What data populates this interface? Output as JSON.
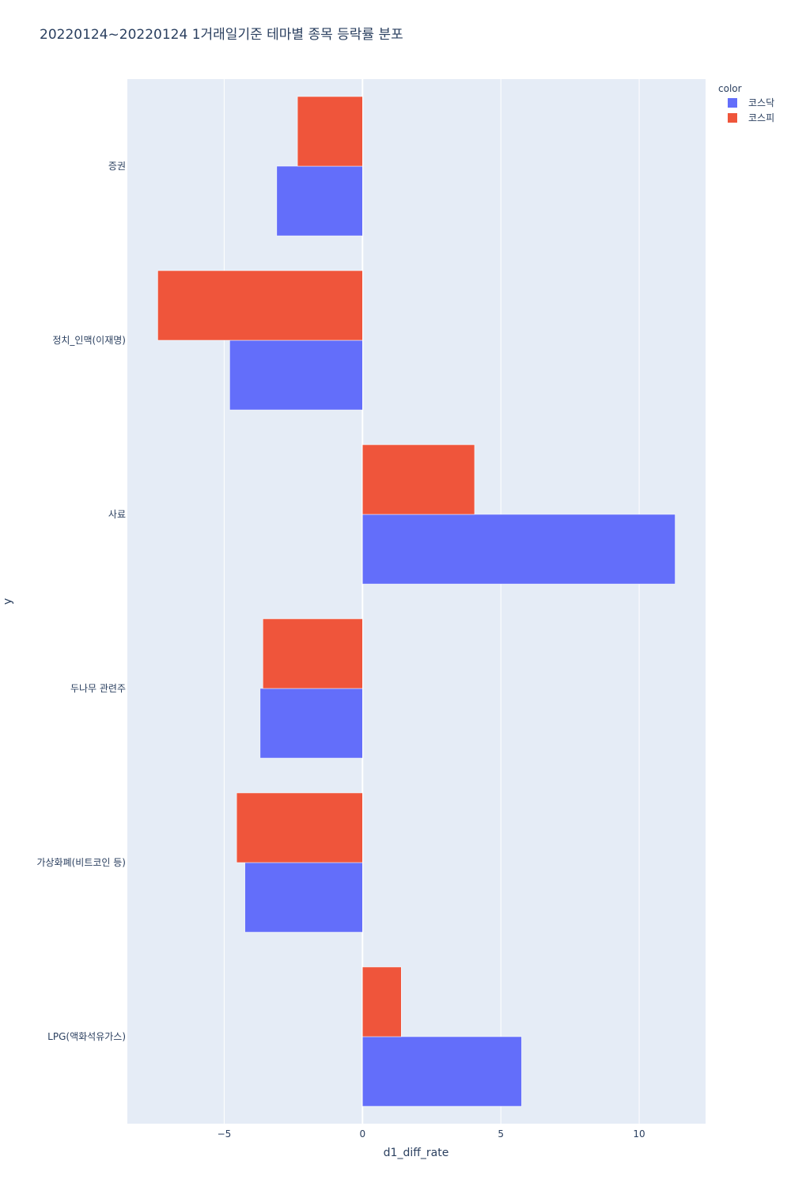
{
  "chart_data": {
    "type": "bar",
    "orientation": "horizontal",
    "barmode": "group",
    "title": "20220124~20220124 1거래일기준 테마별 종목 등락률 분포",
    "xlabel": "d1_diff_rate",
    "ylabel": "y",
    "xlim": [
      -8.5,
      12.4
    ],
    "x_ticks": [
      -5,
      0,
      5,
      10
    ],
    "x_tick_labels": [
      "−5",
      "0",
      "5",
      "10"
    ],
    "grid": true,
    "categories": [
      "증권",
      "정치_인맥(이재명)",
      "사료",
      "두나무 관련주",
      "가상화폐(비트코인 등)",
      "LPG(액화석유가스)"
    ],
    "legend": {
      "title": "color",
      "placement": "top-right"
    },
    "series": [
      {
        "name": "코스닥",
        "color": "#636efa",
        "values": [
          -3.1,
          -4.8,
          11.3,
          -3.7,
          -4.25,
          5.75
        ]
      },
      {
        "name": "코스피",
        "color": "#ef553b",
        "values": [
          -2.35,
          -7.4,
          4.05,
          -3.6,
          -4.55,
          1.4
        ]
      }
    ],
    "colors": {
      "plot_bg": "#e5ecf6",
      "grid": "#ffffff",
      "text": "#2a3f5f"
    }
  }
}
